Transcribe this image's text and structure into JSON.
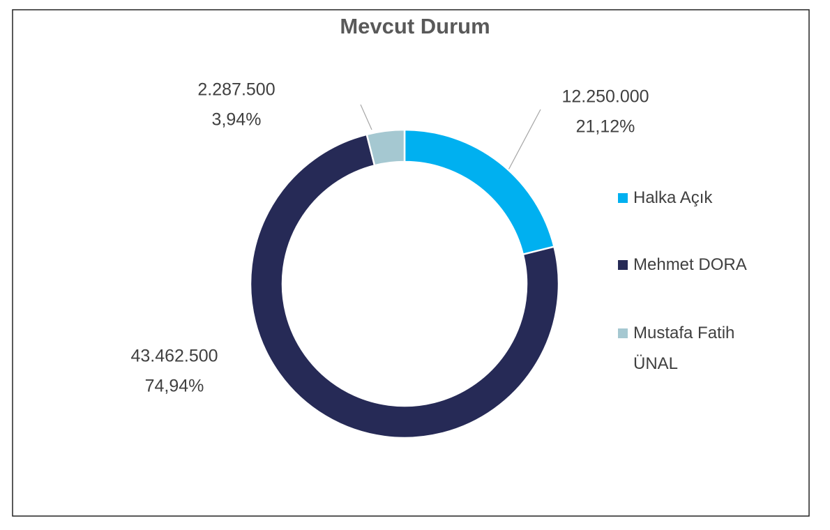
{
  "chart_data": {
    "type": "donut",
    "title": "Mevcut Durum",
    "categories": [
      "Halka Açık",
      "Mehmet DORA",
      "Mustafa Fatih ÜNAL"
    ],
    "values": [
      12250000,
      43462500,
      2287500
    ],
    "value_labels": [
      "12.250.000",
      "43.462.500",
      "2.287.500"
    ],
    "percent_labels": [
      "21,12%",
      "74,94%",
      "3,94%"
    ],
    "colors": [
      "#00b0f0",
      "#262a56",
      "#a5c8d1"
    ],
    "legend": "right"
  }
}
